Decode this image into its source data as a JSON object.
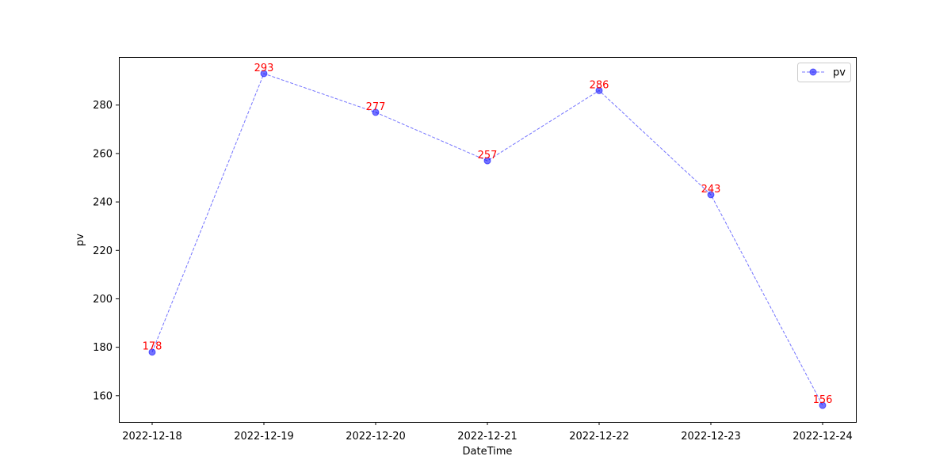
{
  "chart_data": {
    "type": "line",
    "title": "",
    "xlabel": "DateTime",
    "ylabel": "pv",
    "categories": [
      "2022-12-18",
      "2022-12-19",
      "2022-12-20",
      "2022-12-21",
      "2022-12-22",
      "2022-12-23",
      "2022-12-24"
    ],
    "series": [
      {
        "name": "pv",
        "values": [
          178,
          293,
          277,
          257,
          286,
          243,
          156
        ],
        "color": "#0000ff",
        "line_style": "dashed",
        "marker": "circle"
      }
    ],
    "data_labels": [
      "178",
      "293",
      "277",
      "257",
      "286",
      "243",
      "156"
    ],
    "data_label_color": "#ff0000",
    "yticks": [
      160,
      180,
      200,
      220,
      240,
      260,
      280
    ],
    "ylim": [
      149.15,
      299.85
    ],
    "grid": false,
    "legend": "top-right"
  }
}
